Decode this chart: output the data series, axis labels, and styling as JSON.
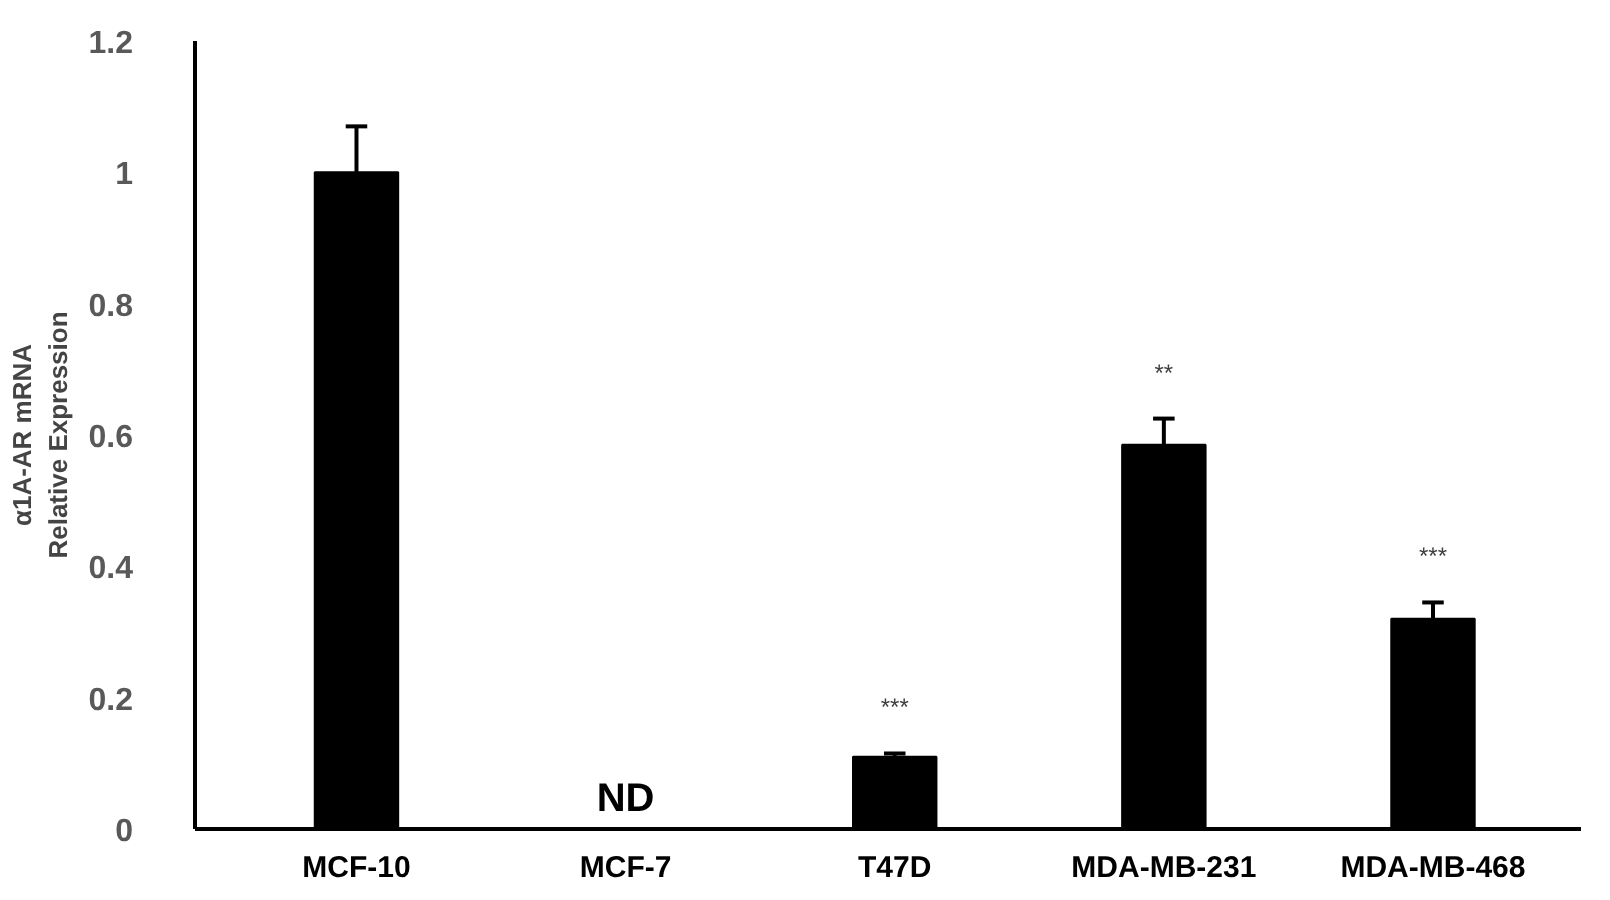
{
  "chart_data": {
    "type": "bar",
    "ylabel": "α1A-AR mRNA\nRelative Expression",
    "categories": [
      "MCF-10",
      "MCF-7",
      "T47D",
      "MDA-MB-231",
      "MDA-MB-468"
    ],
    "values": [
      1.0,
      0,
      0.11,
      0.585,
      0.32
    ],
    "errors": [
      [
        1.0,
        1.07
      ],
      null,
      [
        0.11,
        0.115
      ],
      [
        0.585,
        0.625
      ],
      [
        0.32,
        0.345
      ]
    ],
    "color": "#000000",
    "ylim": [
      0,
      1.2
    ],
    "yticks": [
      0,
      {
        "value": 0.2,
        "label": "0.2"
      },
      {
        "value": 0.4,
        "label": "0.4"
      },
      {
        "value": 0.6,
        "label": "0.6"
      },
      {
        "value": 0.8,
        "label": "0.8"
      },
      1,
      {
        "value": 1.2,
        "label": "1.2"
      }
    ],
    "grid": false,
    "annotations": [
      "ND",
      "***",
      "**",
      "***"
    ]
  }
}
